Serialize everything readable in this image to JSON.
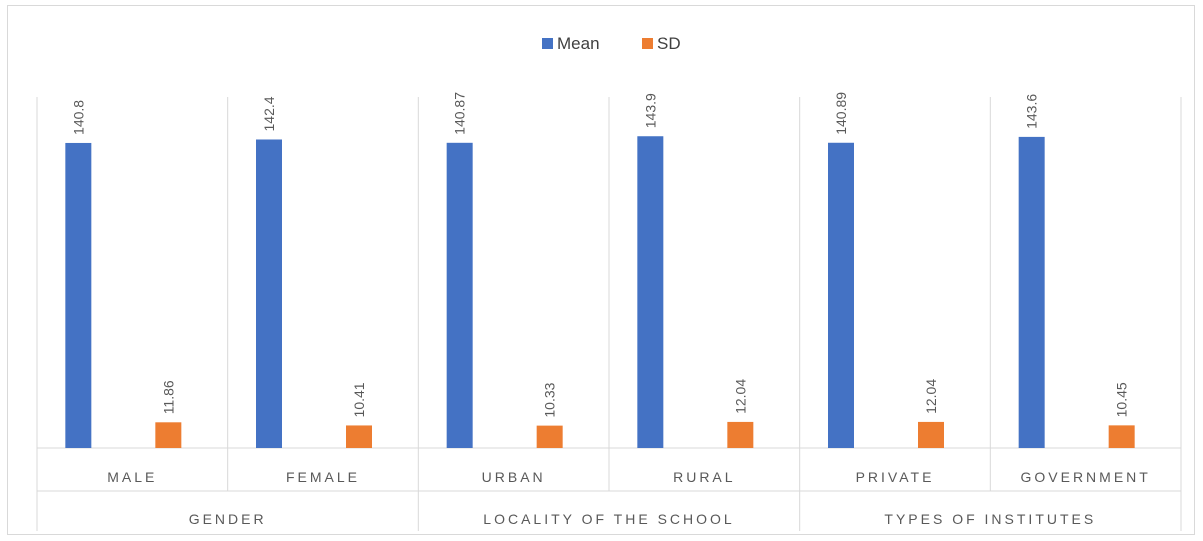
{
  "chart_data": {
    "type": "bar",
    "title": "",
    "xlabel": "",
    "ylabel": "",
    "ylim": [
      0,
      160
    ],
    "grid": false,
    "legend_position": "top",
    "groups": [
      {
        "label": "GENDER",
        "categories": [
          "MALE",
          "FEMALE"
        ]
      },
      {
        "label": "LOCALITY OF THE SCHOOL",
        "categories": [
          "URBAN",
          "RURAL"
        ]
      },
      {
        "label": "TYPES OF INSTITUTES",
        "categories": [
          "PRIVATE",
          "GOVERNMENT"
        ]
      }
    ],
    "categories": [
      "MALE",
      "FEMALE",
      "URBAN",
      "RURAL",
      "PRIVATE",
      "GOVERNMENT"
    ],
    "series": [
      {
        "name": "Mean",
        "color": "#4472c4",
        "values": [
          140.8,
          142.4,
          140.87,
          143.9,
          140.89,
          143.6
        ],
        "labels": [
          "140.8",
          "142.4",
          "140.87",
          "143.9",
          "140.89",
          "143.6"
        ]
      },
      {
        "name": "SD",
        "color": "#ed7d31",
        "values": [
          11.86,
          10.41,
          10.33,
          12.04,
          12.04,
          10.45
        ],
        "labels": [
          "11.86",
          "10.41",
          "10.33",
          "12.04",
          "12.04",
          "10.45"
        ]
      }
    ]
  }
}
